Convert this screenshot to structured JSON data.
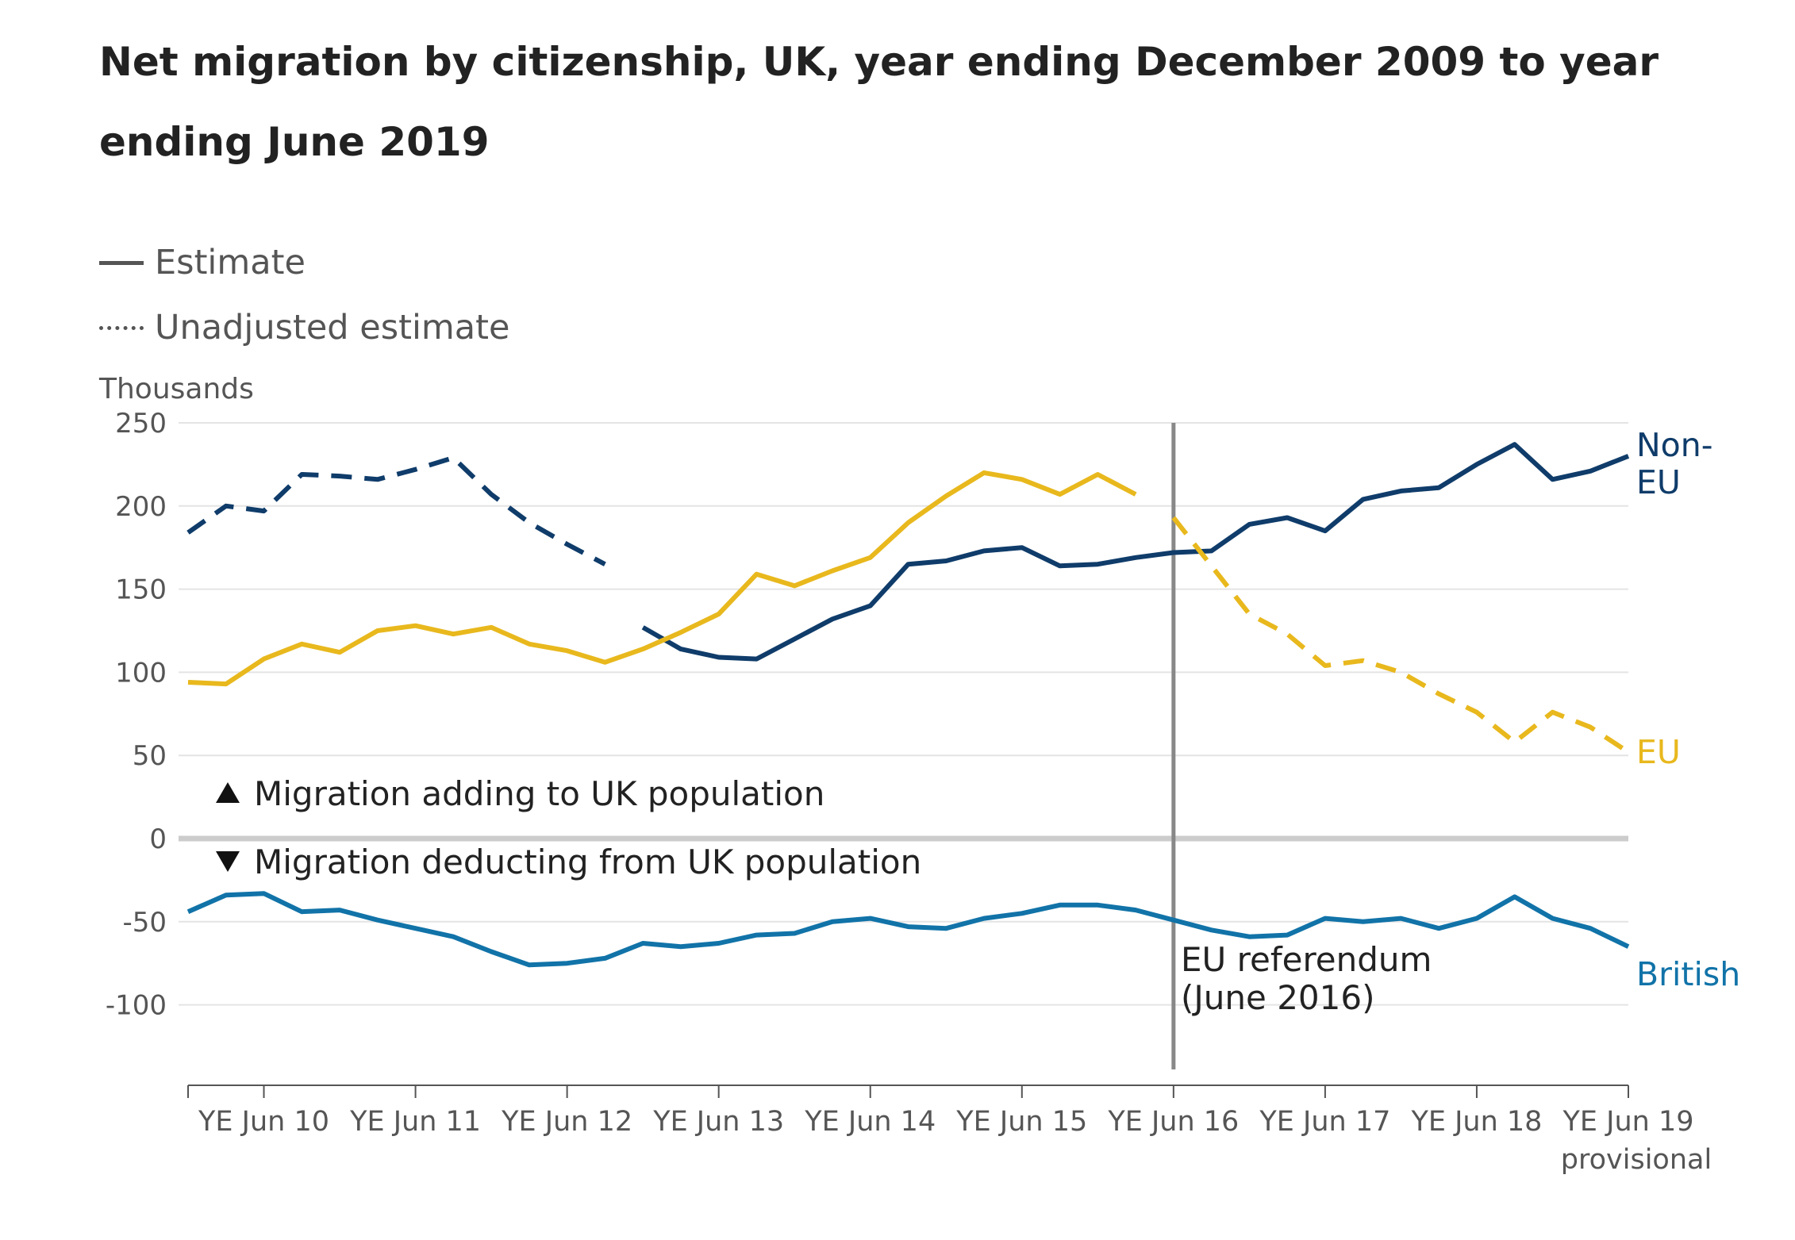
{
  "title": "Net migration by citizenship, UK, year ending December 2009 to year ending June 2019",
  "legend": {
    "estimate": "Estimate",
    "unadjusted": "Unadjusted estimate"
  },
  "colors": {
    "non_eu": "#0f3c6a",
    "eu": "#e8b81d",
    "british": "#1173a8",
    "grid": "#e4e4e4",
    "zero": "#cccccc",
    "referendum": "#888888",
    "text": "#444444"
  },
  "chart_data": {
    "type": "line",
    "ylabel": "Thousands",
    "ylim": [
      -140,
      250
    ],
    "yticks": [
      250,
      200,
      150,
      100,
      50,
      0,
      -50,
      -100
    ],
    "xticks": [
      {
        "x": 2,
        "label": "YE Jun 10"
      },
      {
        "x": 6,
        "label": "YE Jun 11"
      },
      {
        "x": 10,
        "label": "YE Jun 12"
      },
      {
        "x": 14,
        "label": "YE Jun 13"
      },
      {
        "x": 18,
        "label": "YE Jun 14"
      },
      {
        "x": 22,
        "label": "YE Jun 15"
      },
      {
        "x": 26,
        "label": "YE Jun 16"
      },
      {
        "x": 30,
        "label": "YE Jun 17"
      },
      {
        "x": 34,
        "label": "YE Jun 18"
      },
      {
        "x": 38,
        "label": "YE Jun 19",
        "sublabel": "provisional"
      }
    ],
    "x_period_ticks": [
      0,
      2,
      6,
      10,
      14,
      18,
      22,
      26,
      30,
      34,
      38
    ],
    "series": [
      {
        "name": "Non-EU",
        "key": "non_eu",
        "style": "dashed",
        "start": 0,
        "values": [
          184,
          200,
          197,
          219,
          218,
          216,
          222,
          229,
          207,
          190,
          177,
          165
        ]
      },
      {
        "name": "Non-EU",
        "key": "non_eu",
        "style": "solid",
        "start": 12,
        "values": [
          127,
          114,
          109,
          108,
          120,
          132,
          140,
          165,
          167,
          173,
          175,
          164,
          165,
          169,
          172,
          173,
          189,
          193,
          185,
          204,
          209,
          211,
          225,
          237,
          216,
          221,
          230
        ]
      },
      {
        "name": "EU",
        "key": "eu",
        "style": "solid",
        "start": 0,
        "values": [
          94,
          93,
          108,
          117,
          112,
          125,
          128,
          123,
          127,
          117,
          113,
          106,
          114,
          124,
          135,
          159,
          152,
          161,
          169,
          190,
          206,
          220,
          216,
          207,
          219,
          207
        ]
      },
      {
        "name": "EU",
        "key": "eu",
        "style": "dashed",
        "start": 26,
        "values": [
          193,
          164,
          135,
          123,
          104,
          107,
          100,
          87,
          76,
          58,
          76,
          67,
          52
        ]
      },
      {
        "name": "British",
        "key": "british",
        "style": "solid",
        "start": 0,
        "values": [
          -44,
          -34,
          -33,
          -44,
          -43,
          -49,
          -54,
          -59,
          -68,
          -76,
          -75,
          -72,
          -63,
          -65,
          -63,
          -58,
          -57,
          -50,
          -48,
          -53,
          -54,
          -48,
          -45,
          -40,
          -40,
          -43,
          -49,
          -55,
          -59,
          -58,
          -48,
          -50,
          -48,
          -54,
          -48,
          -35,
          -48,
          -54,
          -65
        ]
      }
    ],
    "end_labels": {
      "non_eu": [
        "Non-",
        "EU"
      ],
      "eu": "EU",
      "british": "British"
    },
    "annotations": {
      "adding": "Migration adding to UK population",
      "deducting": "Migration deducting from UK population",
      "referendum_line1": "EU referendum",
      "referendum_line2": "(June 2016)",
      "referendum_x": 26
    }
  }
}
